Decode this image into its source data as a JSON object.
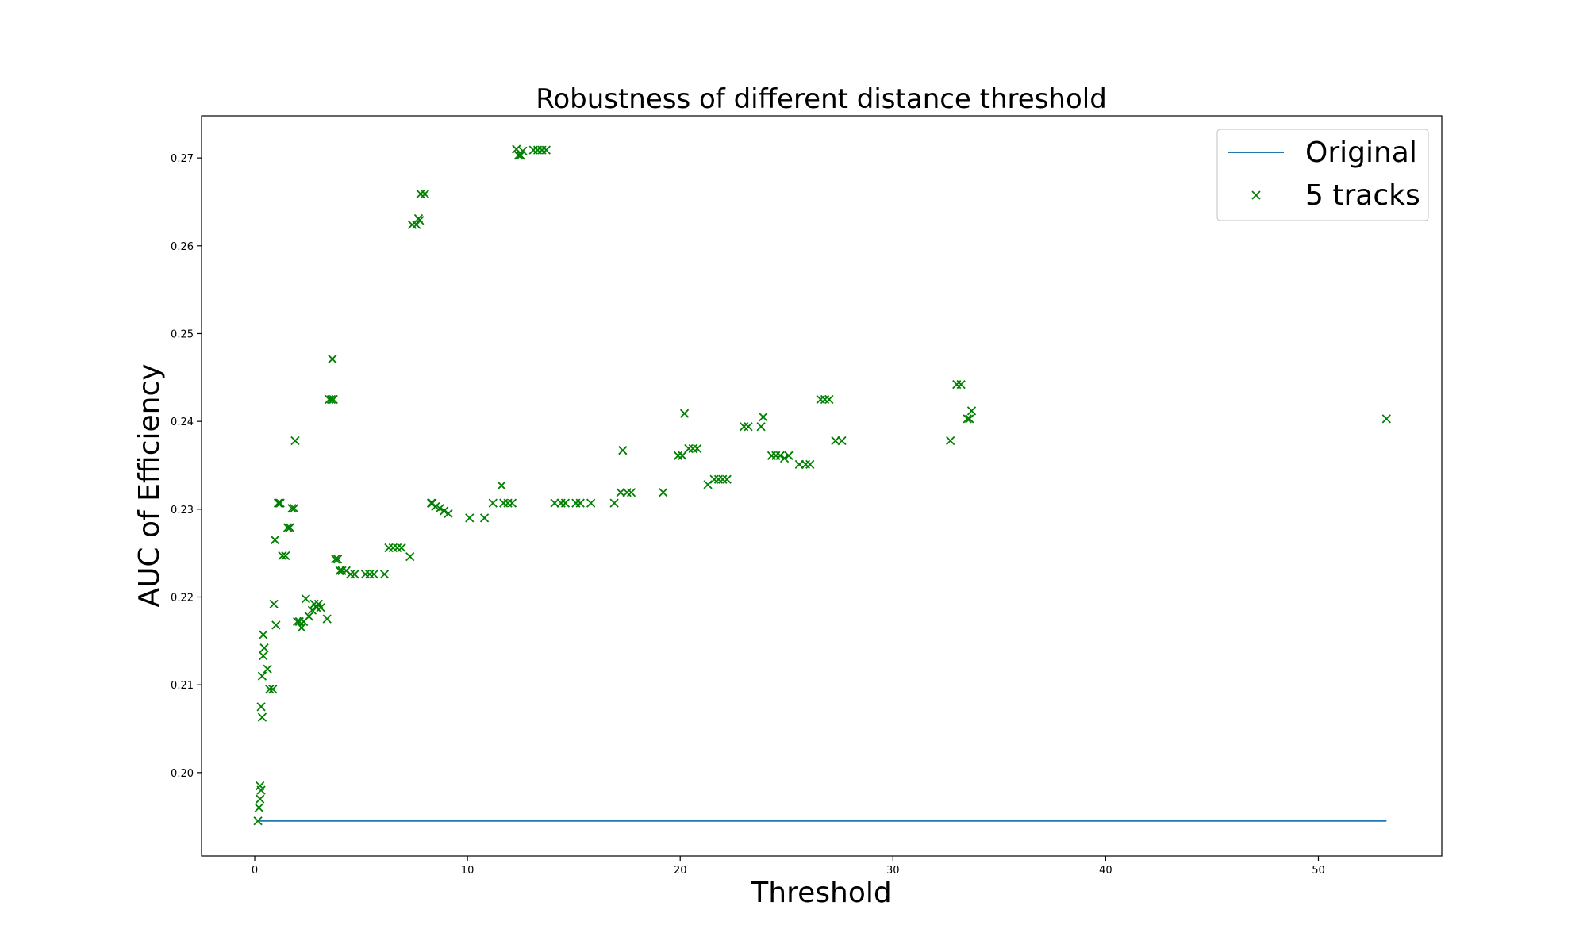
{
  "chart_data": {
    "type": "scatter",
    "title": "Robustness of different distance threshold",
    "xlabel": "Threshold",
    "ylabel": "AUC of Efficiency",
    "xlim": [
      -2.5,
      55.8
    ],
    "ylim": [
      0.1905,
      0.2748
    ],
    "xticks": [
      0,
      10,
      20,
      30,
      40,
      50
    ],
    "yticks": [
      0.2,
      0.21,
      0.22,
      0.23,
      0.24,
      0.25,
      0.26,
      0.27
    ],
    "grid": false,
    "legend": "top-right",
    "colors": {
      "line": "#1f77b4",
      "scatter": "#008000"
    },
    "series": [
      {
        "name": "Original",
        "kind": "line",
        "x": [
          0.2,
          53.2
        ],
        "y": [
          0.1945,
          0.1945
        ]
      },
      {
        "name": "5 tracks",
        "kind": "scatter",
        "marker": "x",
        "x": [
          0.15,
          0.2,
          0.25,
          0.25,
          0.3,
          0.3,
          0.35,
          0.35,
          0.4,
          0.4,
          0.45,
          0.6,
          0.7,
          0.85,
          0.9,
          0.95,
          1.0,
          1.1,
          1.15,
          1.2,
          1.3,
          1.45,
          1.55,
          1.65,
          1.75,
          1.85,
          1.9,
          2.0,
          2.1,
          2.2,
          2.3,
          2.4,
          2.55,
          2.7,
          2.8,
          2.9,
          3.0,
          3.1,
          3.4,
          3.5,
          3.6,
          3.65,
          3.7,
          3.8,
          3.9,
          4.0,
          4.1,
          4.3,
          4.5,
          4.7,
          5.2,
          5.4,
          5.6,
          6.1,
          6.3,
          6.5,
          6.7,
          6.9,
          7.3,
          7.4,
          7.6,
          7.7,
          7.75,
          7.8,
          8.0,
          8.3,
          8.35,
          8.5,
          8.7,
          8.9,
          9.1,
          10.1,
          10.8,
          11.2,
          11.6,
          11.7,
          11.9,
          12.1,
          12.3,
          12.4,
          12.5,
          12.6,
          13.1,
          13.3,
          13.5,
          13.7,
          14.1,
          14.4,
          14.6,
          15.1,
          15.3,
          15.8,
          16.9,
          17.2,
          17.3,
          17.5,
          17.7,
          19.2,
          19.9,
          20.1,
          20.2,
          20.4,
          20.6,
          20.8,
          21.3,
          21.6,
          21.8,
          22.0,
          22.2,
          23.0,
          23.2,
          23.8,
          23.9,
          24.3,
          24.5,
          24.7,
          24.9,
          25.1,
          25.6,
          25.9,
          26.1,
          26.6,
          26.8,
          27.0,
          27.3,
          27.6,
          32.7,
          33.0,
          33.2,
          33.5,
          33.6,
          33.7,
          53.2
        ],
        "y": [
          0.1945,
          0.196,
          0.197,
          0.1985,
          0.198,
          0.2075,
          0.211,
          0.2063,
          0.2133,
          0.2157,
          0.2142,
          0.2118,
          0.2095,
          0.2095,
          0.2192,
          0.2265,
          0.2168,
          0.2307,
          0.2307,
          0.2307,
          0.2247,
          0.2247,
          0.2279,
          0.2279,
          0.2301,
          0.2301,
          0.2378,
          0.2172,
          0.2172,
          0.2165,
          0.2172,
          0.2198,
          0.2178,
          0.2185,
          0.2192,
          0.2188,
          0.2192,
          0.2188,
          0.2175,
          0.2425,
          0.2425,
          0.2471,
          0.2425,
          0.2243,
          0.2243,
          0.223,
          0.223,
          0.223,
          0.2226,
          0.2226,
          0.2226,
          0.2226,
          0.2226,
          0.2226,
          0.2256,
          0.2256,
          0.2256,
          0.2256,
          0.2246,
          0.2624,
          0.2624,
          0.2631,
          0.2629,
          0.2659,
          0.2659,
          0.2307,
          0.2307,
          0.2303,
          0.2301,
          0.2298,
          0.2295,
          0.229,
          0.229,
          0.2307,
          0.2327,
          0.2307,
          0.2307,
          0.2307,
          0.271,
          0.2703,
          0.2703,
          0.2708,
          0.2709,
          0.2709,
          0.2709,
          0.2709,
          0.2307,
          0.2307,
          0.2307,
          0.2307,
          0.2307,
          0.2307,
          0.2307,
          0.2319,
          0.2367,
          0.2319,
          0.2319,
          0.2319,
          0.2361,
          0.2361,
          0.2409,
          0.2369,
          0.2369,
          0.2369,
          0.2328,
          0.2334,
          0.2334,
          0.2334,
          0.2334,
          0.2394,
          0.2394,
          0.2394,
          0.2405,
          0.2361,
          0.2361,
          0.2361,
          0.2358,
          0.2361,
          0.2351,
          0.2351,
          0.2351,
          0.2425,
          0.2425,
          0.2425,
          0.2378,
          0.2378,
          0.2378,
          0.2442,
          0.2442,
          0.2403,
          0.2403,
          0.2412,
          0.2403
        ]
      }
    ]
  }
}
